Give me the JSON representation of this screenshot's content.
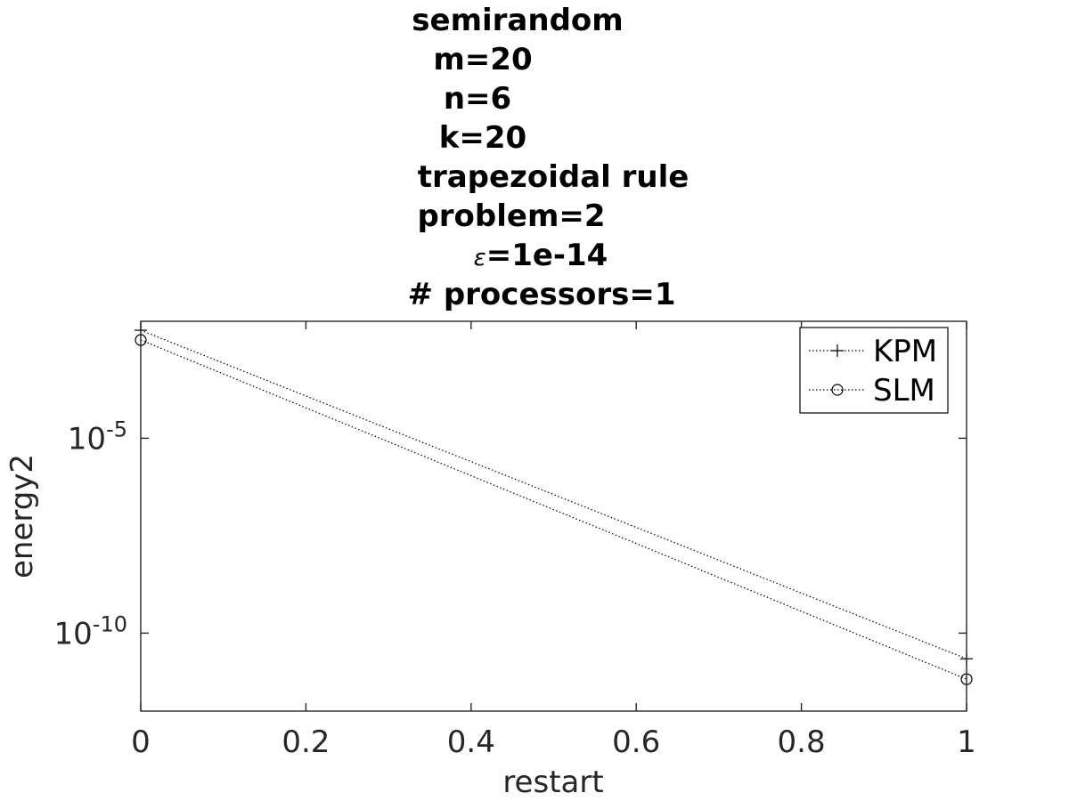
{
  "chart_data": {
    "type": "line",
    "title_lines": [
      "semirandom",
      "m=20",
      "n=6",
      "k=20",
      "trapezoidal rule",
      "problem=2",
      "=1e-14",
      "# processors=1"
    ],
    "epsilon_symbol": "ε",
    "xlabel": "restart",
    "ylabel": "energy2",
    "xlim": [
      0,
      1
    ],
    "ylim": [
      1e-12,
      0.01
    ],
    "yscale": "log",
    "x_ticks": [
      0,
      0.2,
      0.4,
      0.6,
      0.8,
      1
    ],
    "x_tick_labels": [
      "0",
      "0.2",
      "0.4",
      "0.6",
      "0.8",
      "1"
    ],
    "y_ticks": [
      {
        "value": 1e-05,
        "base": "10",
        "exp": "-5"
      },
      {
        "value": 1e-10,
        "base": "10",
        "exp": "-10"
      }
    ],
    "grid": false,
    "legend_position": "top-right",
    "series": [
      {
        "name": "KPM",
        "marker": "plus",
        "line": "dotted",
        "x": [
          0,
          1
        ],
        "y": [
          0.00589,
          2.2e-11
        ]
      },
      {
        "name": "SLM",
        "marker": "circle",
        "line": "dotted",
        "x": [
          0,
          1
        ],
        "y": [
          0.00331,
          6.6e-12
        ]
      }
    ]
  }
}
